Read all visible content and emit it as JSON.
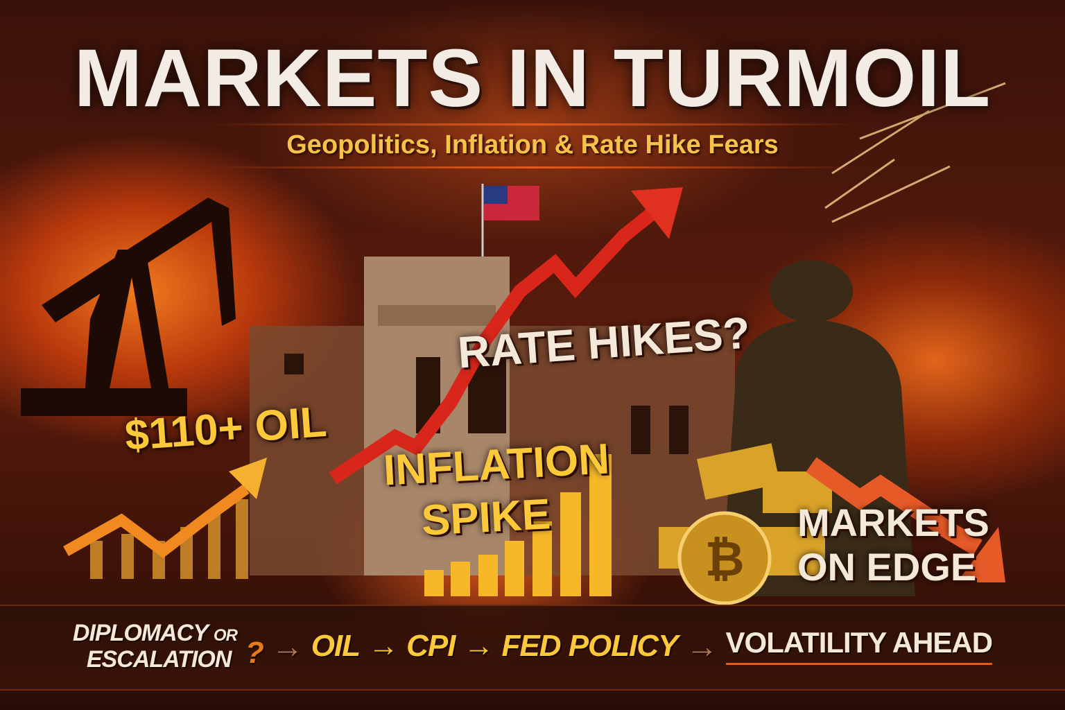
{
  "title": "MARKETS IN TURMOIL",
  "subtitle": "Geopolitics, Inflation & Rate Hike Fears",
  "callouts": {
    "oil": "$110+ OIL",
    "rates": "RATE HIKES?",
    "inflation_line1": "INFLATION",
    "inflation_line2": "SPIKE",
    "markets_line1": "MARKETS",
    "markets_line2": "ON EDGE"
  },
  "bottom_bar": {
    "diplomacy": "DIPLOMACY",
    "or": "OR",
    "escalation": "ESCALATION",
    "question": "?",
    "oil": "OIL",
    "cpi": "CPI",
    "fed_policy": "FED POLICY",
    "volatility": "VOLATILITY AHEAD",
    "arrow_glyph": "→"
  },
  "colors": {
    "gold": "#fbc93a",
    "red_arrow": "#d8261a",
    "fire": "#e45a1a"
  }
}
